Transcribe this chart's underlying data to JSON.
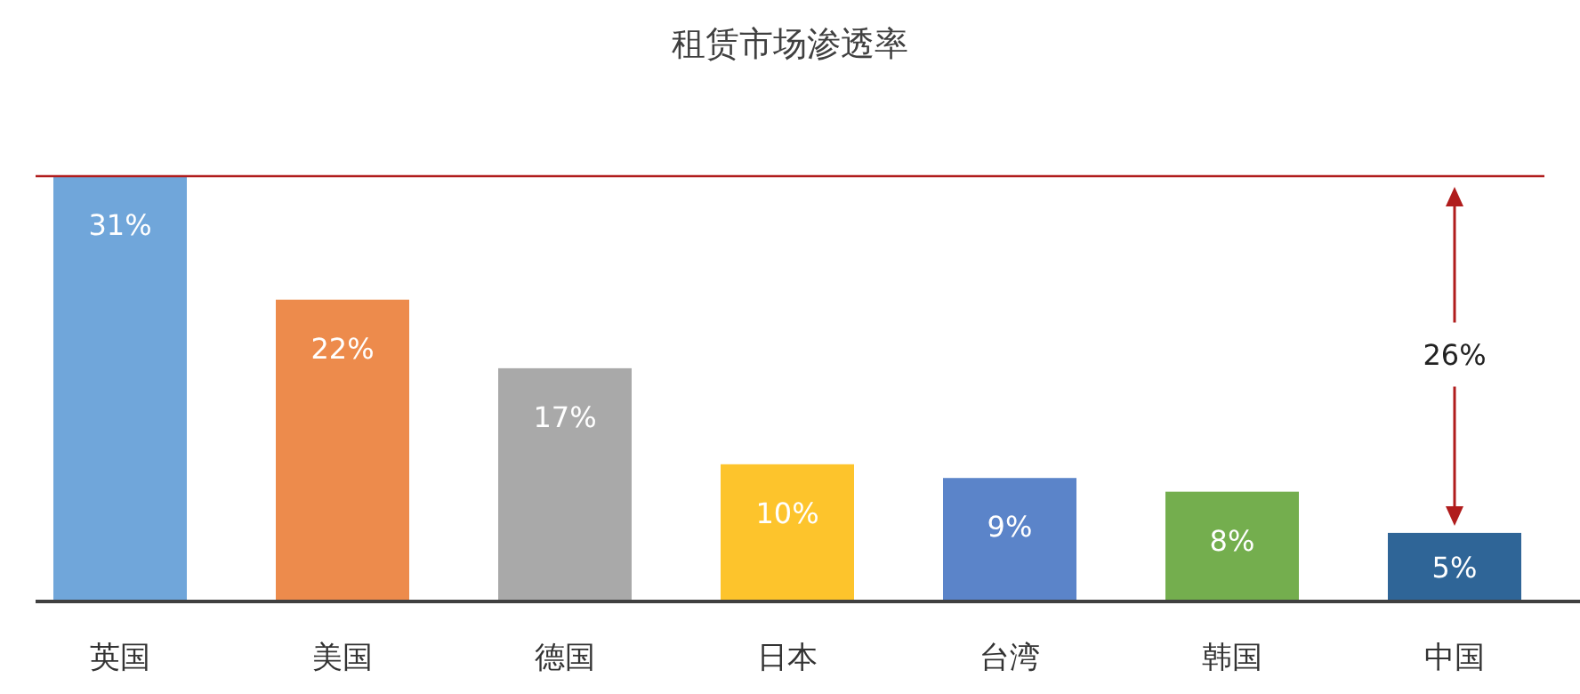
{
  "chart_data": {
    "type": "bar",
    "title": "租赁市场渗透率",
    "categories": [
      "英国",
      "美国",
      "德国",
      "日本",
      "台湾",
      "韩国",
      "中国"
    ],
    "values": [
      31,
      22,
      17,
      10,
      9,
      8,
      5
    ],
    "colors": [
      "#70a6da",
      "#ed8b4c",
      "#a9a9a9",
      "#fdc42c",
      "#5b84c9",
      "#74ae4e",
      "#2f6597"
    ],
    "value_labels": [
      "31%",
      "22%",
      "17%",
      "10%",
      "9%",
      "8%",
      "5%"
    ],
    "ref_lines": [
      {
        "axis": "y",
        "value": 31,
        "color": "#b01c1c"
      }
    ],
    "annotations": [
      "26%"
    ]
  }
}
